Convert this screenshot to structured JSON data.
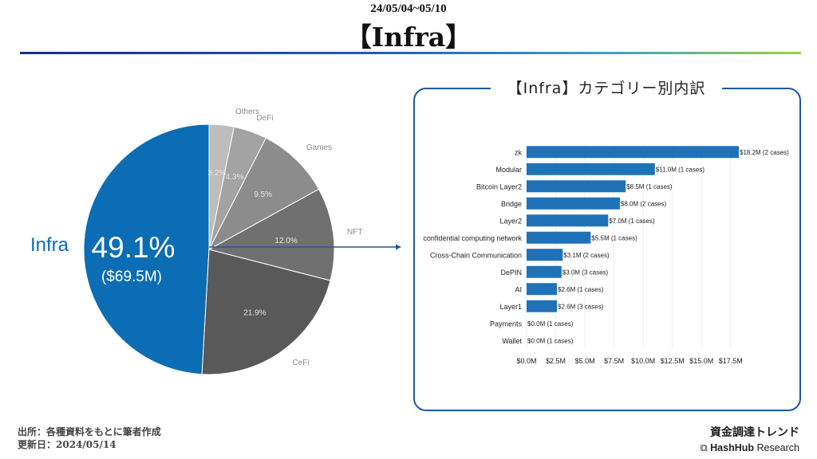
{
  "header": {
    "date_range": "24/05/04~05/10",
    "title": "【Infra】"
  },
  "right_panel": {
    "title": "【Infra】カテゴリー別内訳"
  },
  "chart_data": [
    {
      "type": "pie",
      "slices": [
        {
          "label": "Infra",
          "value": 49.1,
          "display": "49.1%",
          "amount": "($69.5M)",
          "color": "#0b6db3"
        },
        {
          "label": "CeFi",
          "value": 21.9,
          "display": "21.9%",
          "color": "#595959"
        },
        {
          "label": "NFT",
          "value": 12.0,
          "display": "12.0%",
          "color": "#707070"
        },
        {
          "label": "Games",
          "value": 9.5,
          "display": "9.5%",
          "color": "#8c8c8c"
        },
        {
          "label": "DeFi",
          "value": 4.3,
          "display": "4.3%",
          "color": "#a3a3a3"
        },
        {
          "label": "Others",
          "value": 3.2,
          "display": "3.2%",
          "color": "#bdbdbd"
        }
      ]
    },
    {
      "type": "bar",
      "orientation": "horizontal",
      "categories": [
        "zk",
        "Modular",
        "Bitcoin Layer2",
        "Bridge",
        "Layer2",
        "confidential computing network",
        "Cross-Chain Communication",
        "DePIN",
        "AI",
        "Layer1",
        "Payments",
        "Wallet"
      ],
      "values": [
        18.2,
        11.0,
        8.5,
        8.0,
        7.0,
        5.5,
        3.1,
        3.0,
        2.6,
        2.6,
        0.0,
        0.0
      ],
      "value_labels": [
        "$18.2M (2 cases)",
        "$11.0M (1 cases)",
        "$8.5M (1 cases)",
        "$8.0M (2 cases)",
        "$7.0M (1 cases)",
        "$5.5M (1 cases)",
        "$3.1M (2 cases)",
        "$3.0M (3 cases)",
        "$2.6M (1 cases)",
        "$2.6M (3 cases)",
        "$0.0M (1 cases)",
        "$0.0M (1 cases)"
      ],
      "xlim": [
        0,
        18.2
      ],
      "xticks": [
        0,
        2.5,
        5,
        7.5,
        10,
        12.5,
        15,
        17.5
      ],
      "xtick_labels": [
        "$0.0M",
        "$2.5M",
        "$5.0M",
        "$7.5M",
        "$10.0M",
        "$12.5M",
        "$15.0M",
        "$17.5M"
      ],
      "bar_color": "#1f72b8"
    }
  ],
  "footer": {
    "source": "出所：各種資料をもとに筆者作成",
    "updated": "更新日：2024/05/14",
    "brand_jp": "資金調達トレンド",
    "brand_name": "HashHub",
    "brand_suffix": "Research"
  }
}
